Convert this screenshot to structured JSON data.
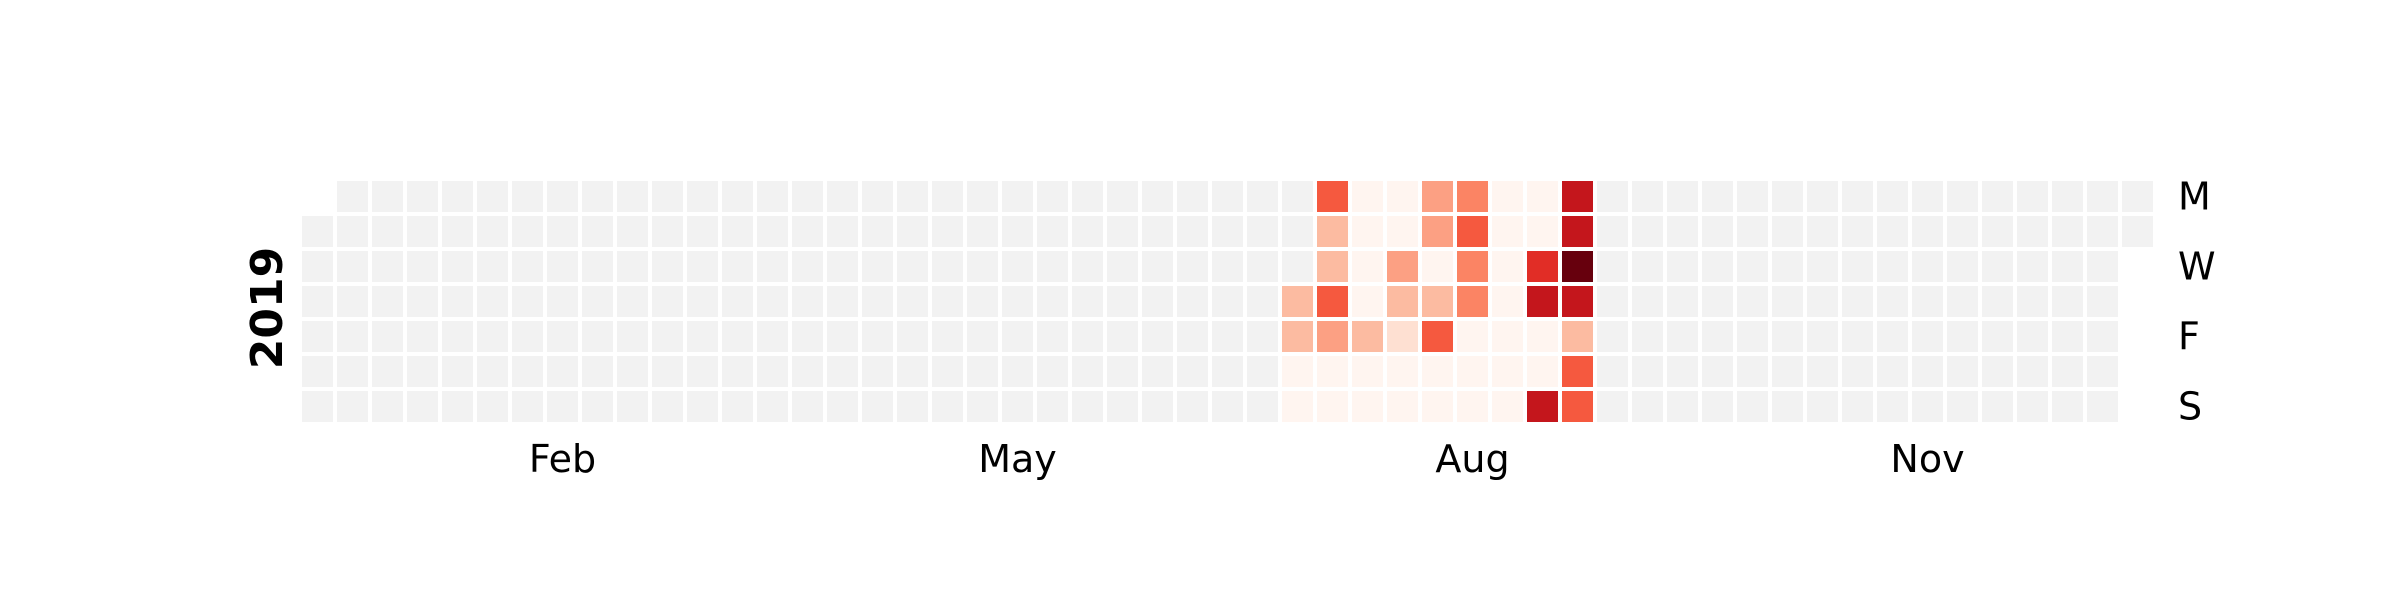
{
  "chart_data": {
    "type": "heatmap",
    "title": "",
    "year_label": "2019",
    "month_labels": [
      {
        "label": "Feb",
        "week": 7
      },
      {
        "label": "May",
        "week": 20
      },
      {
        "label": "Aug",
        "week": 33
      },
      {
        "label": "Nov",
        "week": 46
      }
    ],
    "weekday_labels": [
      {
        "label": "M",
        "row": 0
      },
      {
        "label": "W",
        "row": 2
      },
      {
        "label": "F",
        "row": 4
      },
      {
        "label": "S",
        "row": 6
      }
    ],
    "first_week_day_start": 1,
    "last_week_day_end": 1,
    "num_weeks": 53,
    "value_scale": "0 = no data, 1..9 = increasing intensity",
    "weeks_with_values": [
      {
        "week": 28,
        "values": [
          0,
          0,
          0,
          3,
          3,
          1,
          1
        ]
      },
      {
        "week": 29,
        "values": [
          6,
          3,
          3,
          6,
          4,
          1,
          1
        ]
      },
      {
        "week": 30,
        "values": [
          1,
          1,
          1,
          1,
          3,
          1,
          1
        ]
      },
      {
        "week": 31,
        "values": [
          1,
          1,
          4,
          3,
          2,
          1,
          1
        ]
      },
      {
        "week": 32,
        "values": [
          4,
          4,
          1,
          3,
          6,
          1,
          1
        ]
      },
      {
        "week": 33,
        "values": [
          5,
          6,
          5,
          5,
          1,
          1,
          1
        ]
      },
      {
        "week": 34,
        "values": [
          1,
          1,
          1,
          1,
          1,
          1,
          1
        ]
      },
      {
        "week": 35,
        "values": [
          1,
          1,
          7,
          8,
          1,
          1,
          8
        ]
      },
      {
        "week": 36,
        "values": [
          8,
          8,
          9,
          8,
          3,
          6,
          6
        ]
      }
    ],
    "colors": {
      "empty": "#f2f2f2",
      "scale": [
        "#fff5f0",
        "#fee0d2",
        "#fcbba1",
        "#fca083",
        "#fb8464",
        "#f5593f",
        "#e12d26",
        "#c4161c",
        "#67000d"
      ]
    }
  }
}
